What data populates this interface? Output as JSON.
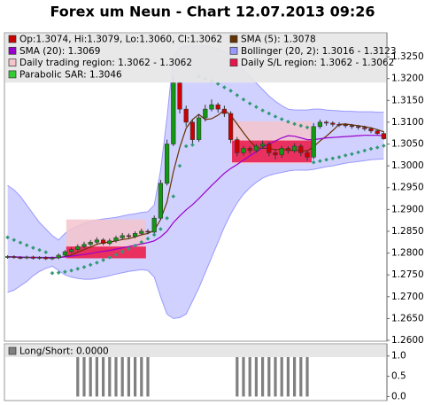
{
  "chart_data": [
    {
      "type": "candlestick",
      "title": "Forex um Neun - Chart 12.07.2013 09:26",
      "ylim": [
        1.2598,
        1.3305
      ],
      "yticks": [
        {
          "value": 1.26,
          "label": "1.2600"
        },
        {
          "value": 1.265,
          "label": "1.2650"
        },
        {
          "value": 1.27,
          "label": "1.2700"
        },
        {
          "value": 1.275,
          "label": "1.2750"
        },
        {
          "value": 1.28,
          "label": "1.2800"
        },
        {
          "value": 1.285,
          "label": "1.2850"
        },
        {
          "value": 1.29,
          "label": "1.2900"
        },
        {
          "value": 1.295,
          "label": "1.2950"
        },
        {
          "value": 1.3,
          "label": "1.3000"
        },
        {
          "value": 1.305,
          "label": "1.3050"
        },
        {
          "value": 1.31,
          "label": "1.3100"
        },
        {
          "value": 1.315,
          "label": "1.3150"
        },
        {
          "value": 1.32,
          "label": "1.3200"
        },
        {
          "value": 1.325,
          "label": "1.3250"
        }
      ],
      "series": [
        {
          "name": "Op:1.3074, Hi:1.3079, Lo:1.3060, Cl:1.3062",
          "kind": "ohlc",
          "color": "#cc0000",
          "up_color": "#119911",
          "down_color": "#cc0000",
          "open": [
            1.279,
            1.2792,
            1.279,
            1.2789,
            1.2791,
            1.2788,
            1.279,
            1.2787,
            1.2789,
            1.2795,
            1.2803,
            1.2808,
            1.2815,
            1.282,
            1.2825,
            1.283,
            1.2822,
            1.2828,
            1.2835,
            1.284,
            1.2838,
            1.2845,
            1.285,
            1.2848,
            1.288,
            1.296,
            1.305,
            1.319,
            1.313,
            1.31,
            1.306,
            1.311,
            1.313,
            1.314,
            1.313,
            1.312,
            1.306,
            1.303,
            1.304,
            1.3035,
            1.3045,
            1.305,
            1.303,
            1.3025,
            1.304,
            1.3035,
            1.3045,
            1.303,
            1.302,
            1.309,
            1.31,
            1.3098,
            1.3095,
            1.3094,
            1.3092,
            1.309,
            1.3088,
            1.3085,
            1.308,
            1.3074
          ],
          "high": [
            1.2795,
            1.2795,
            1.2793,
            1.2794,
            1.2794,
            1.2793,
            1.2793,
            1.2792,
            1.2799,
            1.2807,
            1.2813,
            1.282,
            1.2826,
            1.283,
            1.2836,
            1.2834,
            1.2833,
            1.284,
            1.2846,
            1.2845,
            1.285,
            1.2856,
            1.2855,
            1.2886,
            1.2968,
            1.306,
            1.3205,
            1.3195,
            1.3138,
            1.3105,
            1.3118,
            1.314,
            1.3152,
            1.3145,
            1.3138,
            1.3125,
            1.3066,
            1.3046,
            1.3045,
            1.305,
            1.3058,
            1.3055,
            1.3036,
            1.3046,
            1.3045,
            1.3052,
            1.305,
            1.3036,
            1.3098,
            1.3106,
            1.3104,
            1.3102,
            1.31,
            1.3098,
            1.3096,
            1.3094,
            1.3092,
            1.3089,
            1.3084,
            1.3079
          ],
          "low": [
            1.2787,
            1.2787,
            1.2786,
            1.2786,
            1.2785,
            1.2785,
            1.2784,
            1.2784,
            1.2786,
            1.2792,
            1.28,
            1.2805,
            1.2811,
            1.2816,
            1.2821,
            1.2818,
            1.2818,
            1.2824,
            1.2831,
            1.2833,
            1.2834,
            1.2841,
            1.2843,
            1.2844,
            1.2876,
            1.2955,
            1.3045,
            1.312,
            1.309,
            1.305,
            1.3055,
            1.3102,
            1.3125,
            1.3122,
            1.3112,
            1.3052,
            1.3022,
            1.3024,
            1.3028,
            1.303,
            1.304,
            1.3022,
            1.3015,
            1.3018,
            1.3028,
            1.303,
            1.3022,
            1.3012,
            1.3015,
            1.3085,
            1.3092,
            1.309,
            1.3089,
            1.3087,
            1.3085,
            1.3083,
            1.308,
            1.3075,
            1.307,
            1.306
          ],
          "close": [
            1.2792,
            1.279,
            1.2789,
            1.2791,
            1.2788,
            1.279,
            1.2787,
            1.2789,
            1.2795,
            1.2803,
            1.2808,
            1.2815,
            1.282,
            1.2825,
            1.283,
            1.2822,
            1.2828,
            1.2835,
            1.284,
            1.2838,
            1.2845,
            1.285,
            1.2848,
            1.288,
            1.296,
            1.305,
            1.319,
            1.313,
            1.31,
            1.306,
            1.311,
            1.313,
            1.314,
            1.313,
            1.312,
            1.306,
            1.303,
            1.304,
            1.3035,
            1.3045,
            1.305,
            1.303,
            1.3025,
            1.304,
            1.3035,
            1.3045,
            1.303,
            1.302,
            1.309,
            1.31,
            1.3098,
            1.3095,
            1.3094,
            1.3092,
            1.309,
            1.3088,
            1.3085,
            1.308,
            1.3074,
            1.3062
          ]
        },
        {
          "name": "SMA (5): 1.3078",
          "kind": "line",
          "color": "#663300",
          "values": [
            1.2791,
            1.2791,
            1.279,
            1.279,
            1.279,
            1.279,
            1.2789,
            1.2789,
            1.279,
            1.2792,
            1.2796,
            1.2802,
            1.2808,
            1.2814,
            1.282,
            1.2824,
            1.2825,
            1.2828,
            1.2831,
            1.2833,
            1.2837,
            1.2842,
            1.2845,
            1.2852,
            1.2877,
            1.2917,
            1.2986,
            1.3042,
            1.3086,
            1.3106,
            1.3118,
            1.3106,
            1.3108,
            1.3116,
            1.3128,
            1.3116,
            1.3096,
            1.3076,
            1.3057,
            1.3042,
            1.304,
            1.304,
            1.3037,
            1.3038,
            1.3036,
            1.3035,
            1.3035,
            1.3034,
            1.3044,
            1.3057,
            1.3068,
            1.3081,
            1.3095,
            1.3096,
            1.3094,
            1.3092,
            1.309,
            1.3087,
            1.3083,
            1.3078
          ]
        },
        {
          "name": "SMA (20): 1.3069",
          "kind": "line",
          "color": "#9900cc",
          "values": [
            1.2792,
            1.2791,
            1.2791,
            1.279,
            1.279,
            1.279,
            1.279,
            1.279,
            1.279,
            1.2791,
            1.2793,
            1.2795,
            1.2797,
            1.2799,
            1.2802,
            1.2804,
            1.2806,
            1.2809,
            1.2812,
            1.2815,
            1.2818,
            1.2821,
            1.2824,
            1.2828,
            1.2837,
            1.285,
            1.287,
            1.2885,
            1.2899,
            1.2911,
            1.2925,
            1.294,
            1.2955,
            1.2969,
            1.2983,
            1.2994,
            1.3003,
            1.3013,
            1.3023,
            1.3032,
            1.3042,
            1.305,
            1.3057,
            1.3064,
            1.3069,
            1.3068,
            1.3064,
            1.306,
            1.306,
            1.3062,
            1.3064,
            1.3065,
            1.3066,
            1.3067,
            1.3068,
            1.3069,
            1.307,
            1.307,
            1.307,
            1.3069
          ]
        },
        {
          "name": "Bollinger (20, 2): 1.3016 - 1.3123",
          "kind": "band",
          "color": "#9999ff",
          "fill": "#ccccff",
          "upper": [
            1.2955,
            1.2945,
            1.293,
            1.291,
            1.289,
            1.287,
            1.2855,
            1.284,
            1.283,
            1.2845,
            1.2855,
            1.2862,
            1.2868,
            1.2872,
            1.2876,
            1.2878,
            1.288,
            1.2882,
            1.2885,
            1.2888,
            1.289,
            1.2893,
            1.2895,
            1.291,
            1.299,
            1.311,
            1.325,
            1.327,
            1.3275,
            1.3275,
            1.3275,
            1.3275,
            1.3272,
            1.3268,
            1.3262,
            1.325,
            1.3235,
            1.322,
            1.3205,
            1.319,
            1.3175,
            1.316,
            1.3148,
            1.3138,
            1.313,
            1.3128,
            1.3128,
            1.3128,
            1.313,
            1.313,
            1.3128,
            1.3127,
            1.3126,
            1.3125,
            1.3125,
            1.3124,
            1.3124,
            1.3124,
            1.3123,
            1.3123
          ],
          "lower": [
            1.271,
            1.2715,
            1.2725,
            1.2735,
            1.2748,
            1.2758,
            1.2765,
            1.277,
            1.276,
            1.275,
            1.2745,
            1.2742,
            1.274,
            1.274,
            1.2742,
            1.2745,
            1.2748,
            1.2752,
            1.2755,
            1.2758,
            1.276,
            1.2762,
            1.276,
            1.2745,
            1.27,
            1.266,
            1.265,
            1.2652,
            1.266,
            1.269,
            1.272,
            1.2755,
            1.279,
            1.2825,
            1.286,
            1.289,
            1.2915,
            1.2935,
            1.295,
            1.2962,
            1.2972,
            1.2978,
            1.2982,
            1.2985,
            1.2988,
            1.299,
            1.299,
            1.299,
            1.2992,
            1.2995,
            1.2998,
            1.3,
            1.3003,
            1.3006,
            1.3008,
            1.301,
            1.3012,
            1.3014,
            1.3015,
            1.3016
          ]
        },
        {
          "name": "Daily trading region: 1.3062 - 1.3062",
          "kind": "region",
          "color": "#f5c4cc",
          "ranges": [
            {
              "x": [
                9.2,
                21.7
              ],
              "y": [
                1.2788,
                1.2877
              ]
            },
            {
              "x": [
                35.2,
                47.7
              ],
              "y": [
                1.3005,
                1.3102
              ]
            }
          ]
        },
        {
          "name": "Daily S/L region: 1.3062 - 1.3062",
          "kind": "region",
          "color": "#e8154a",
          "ranges": [
            {
              "x": [
                9.2,
                21.7
              ],
              "y": [
                1.2788,
                1.2815
              ]
            },
            {
              "x": [
                35.2,
                47.7
              ],
              "y": [
                1.3008,
                1.3058
              ]
            }
          ]
        },
        {
          "name": "Parabolic SAR: 1.3046",
          "kind": "dots",
          "color": "#339977",
          "legend_color": "#33cc33",
          "values": [
            1.2836,
            1.283,
            1.2824,
            1.2818,
            1.2812,
            1.2807,
            1.2802,
            1.2754,
            1.2755,
            1.2757,
            1.276,
            1.2764,
            1.2768,
            1.2773,
            1.2778,
            1.2784,
            1.279,
            1.2796,
            1.2803,
            1.281,
            1.2817,
            1.2825,
            1.2833,
            1.2842,
            1.2855,
            1.288,
            1.293,
            1.3,
            1.3045,
            1.3048,
            1.3205,
            1.32,
            1.3195,
            1.3188,
            1.318,
            1.3172,
            1.3162,
            1.3152,
            1.3143,
            1.3135,
            1.3127,
            1.312,
            1.3113,
            1.3107,
            1.3101,
            1.3096,
            1.3092,
            1.3088,
            1.3008,
            1.3011,
            1.3014,
            1.3017,
            1.302,
            1.3024,
            1.3027,
            1.3031,
            1.3035,
            1.3039,
            1.3042,
            1.3046
          ]
        }
      ]
    },
    {
      "type": "bar",
      "ylim": [
        -0.1,
        1.3
      ],
      "yticks": [
        {
          "value": 1,
          "label": "1.0"
        },
        {
          "value": 0.5,
          "label": "0.5"
        },
        {
          "value": 0,
          "label": "0.0"
        }
      ],
      "series": [
        {
          "name": "Long/Short: 0.0000",
          "color": "#808080",
          "values": [
            0,
            0,
            0,
            0,
            0,
            0,
            0,
            0,
            0,
            0,
            0,
            1,
            1,
            1,
            1,
            1,
            1,
            1,
            1,
            1,
            1,
            1,
            1,
            0,
            0,
            0,
            0,
            0,
            0,
            0,
            0,
            0,
            0,
            0,
            0,
            0,
            1,
            1,
            1,
            1,
            1,
            1,
            1,
            1,
            1,
            1,
            1,
            1,
            0,
            0,
            0,
            0,
            0,
            0,
            0,
            0,
            0,
            0,
            0,
            0
          ]
        }
      ]
    }
  ]
}
